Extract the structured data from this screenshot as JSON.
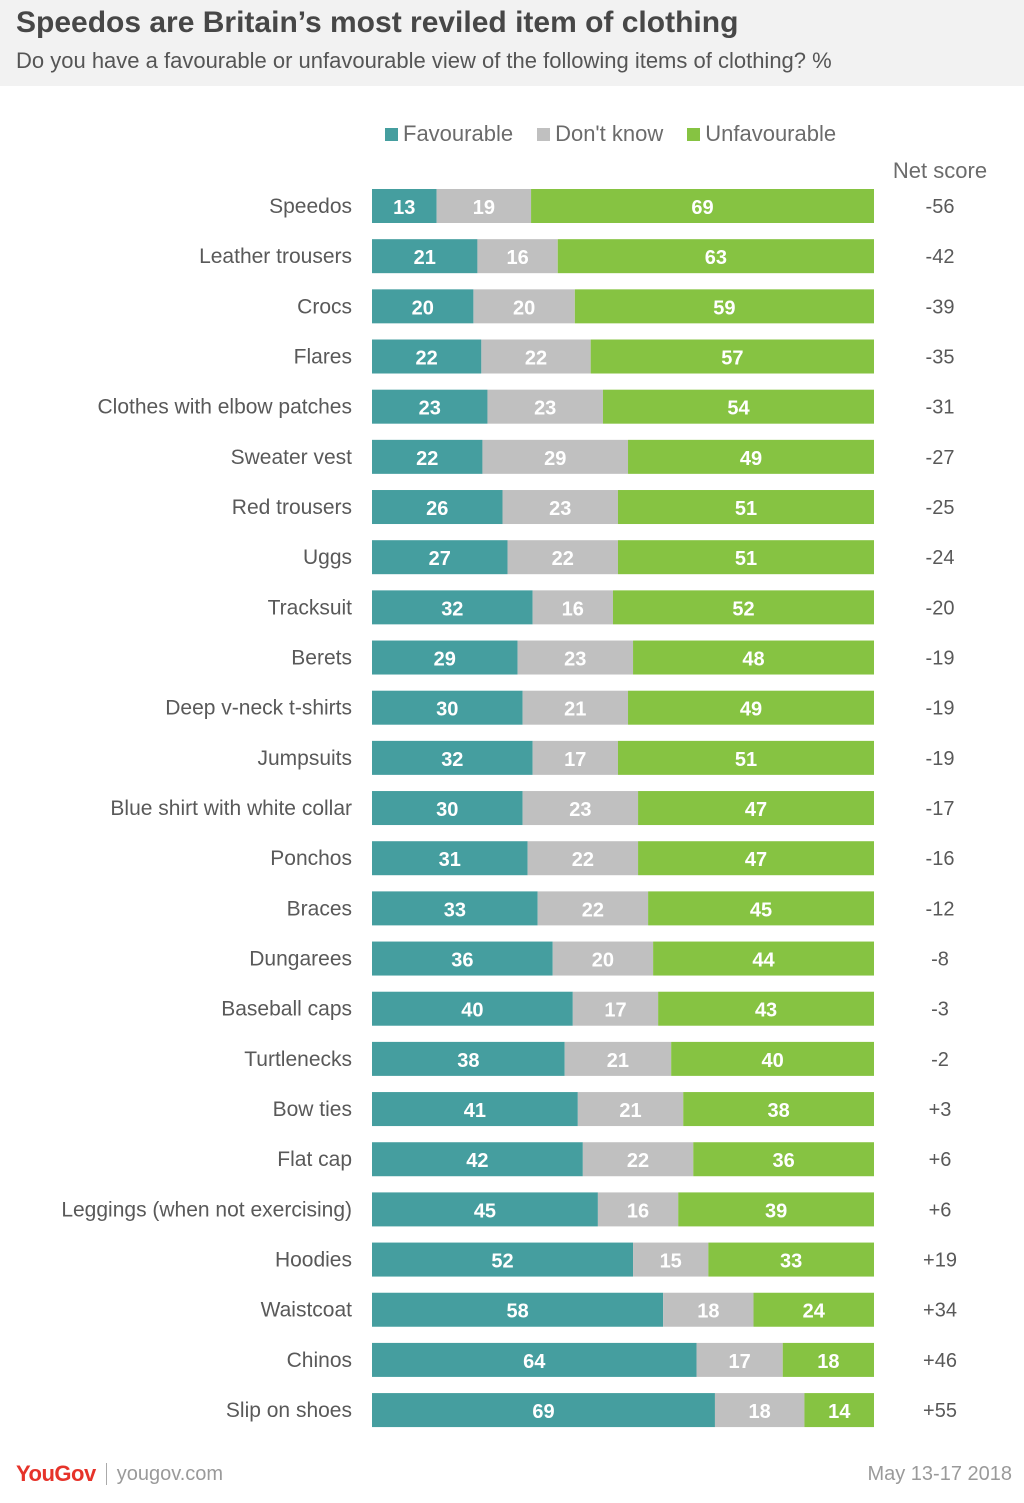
{
  "header": {
    "title": "Speedos are Britain’s most reviled item of clothing",
    "subtitle": "Do you have a favourable or unfavourable view of the following items of clothing? %"
  },
  "legend": {
    "favourable": "Favourable",
    "dont_know": "Don't know",
    "unfavourable": "Unfavourable"
  },
  "net_header": "Net score",
  "colors": {
    "favourable": "#459e9f",
    "dont_know": "#c0c0c0",
    "unfavourable": "#86c342",
    "header_bg": "#f2f2f2",
    "brand": "#e6332a"
  },
  "footer": {
    "brand": "YouGov",
    "url": "yougov.com",
    "date": "May 13-17 2018"
  },
  "chart_data": {
    "type": "bar",
    "orientation": "horizontal",
    "stacked": true,
    "title": "Speedos are Britain’s most reviled item of clothing",
    "subtitle": "Do you have a favourable or unfavourable view of the following items of clothing? %",
    "legend_position": "top",
    "grid": false,
    "categories": [
      "Speedos",
      "Leather trousers",
      "Crocs",
      "Flares",
      "Clothes with elbow patches",
      "Sweater vest",
      "Red trousers",
      "Uggs",
      "Tracksuit",
      "Berets",
      "Deep v-neck t-shirts",
      "Jumpsuits",
      "Blue shirt with white collar",
      "Ponchos",
      "Braces",
      "Dungarees",
      "Baseball caps",
      "Turtlenecks",
      "Bow ties",
      "Flat cap",
      "Leggings (when not exercising)",
      "Hoodies",
      "Waistcoat",
      "Chinos",
      "Slip on shoes"
    ],
    "series": [
      {
        "name": "Favourable",
        "values": [
          13,
          21,
          20,
          22,
          23,
          22,
          26,
          27,
          32,
          29,
          30,
          32,
          30,
          31,
          33,
          36,
          40,
          38,
          41,
          42,
          45,
          52,
          58,
          64,
          69
        ]
      },
      {
        "name": "Don't know",
        "values": [
          19,
          16,
          20,
          22,
          23,
          29,
          23,
          22,
          16,
          23,
          21,
          17,
          23,
          22,
          22,
          20,
          17,
          21,
          21,
          22,
          16,
          15,
          18,
          17,
          18
        ]
      },
      {
        "name": "Unfavourable",
        "values": [
          69,
          63,
          59,
          57,
          54,
          49,
          51,
          51,
          52,
          48,
          49,
          51,
          47,
          47,
          45,
          44,
          43,
          40,
          38,
          36,
          39,
          33,
          24,
          18,
          14
        ]
      }
    ],
    "net_score": [
      "-56",
      "-42",
      "-39",
      "-35",
      "-31",
      "-27",
      "-25",
      "-24",
      "-20",
      "-19",
      "-19",
      "-19",
      "-17",
      "-16",
      "-12",
      "-8",
      "-3",
      "-2",
      "+3",
      "+6",
      "+6",
      "+19",
      "+34",
      "+46",
      "+55"
    ]
  }
}
